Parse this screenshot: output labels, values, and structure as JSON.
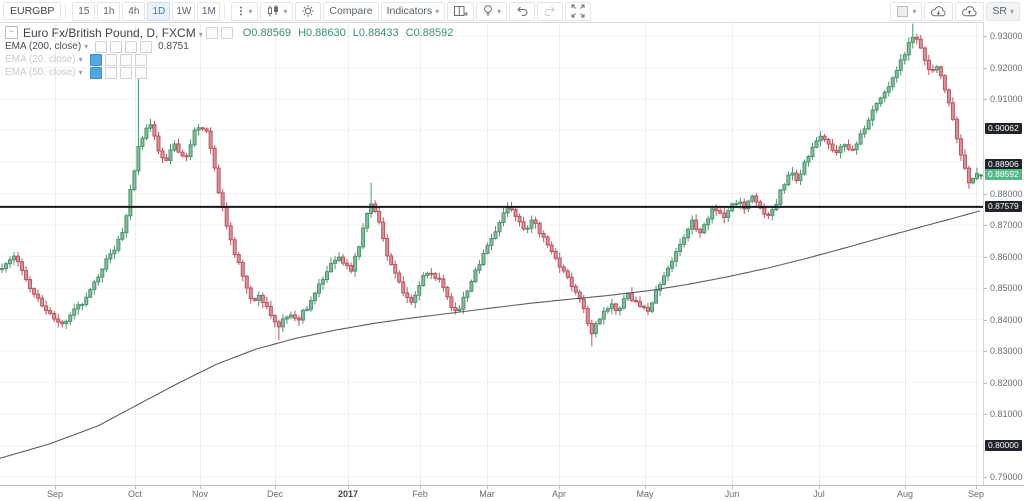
{
  "toolbar": {
    "symbol": "EURGBP",
    "intervals": [
      "15",
      "1h",
      "4h",
      "1D",
      "1W",
      "1M"
    ],
    "selected_interval": "1D",
    "compare_label": "Compare",
    "indicators_label": "Indicators",
    "layout_name": "SR"
  },
  "legend": {
    "title": "Euro Fx/British Pound, D, FXCM",
    "ohlc": [
      {
        "label": "O",
        "value": "0.88569"
      },
      {
        "label": "H",
        "value": "0.88630"
      },
      {
        "label": "L",
        "value": "0.88433"
      },
      {
        "label": "C",
        "value": "0.88592"
      }
    ],
    "indicators": [
      {
        "name": "EMA (200, close)",
        "value": "0.8751",
        "muted": false
      },
      {
        "name": "EMA (20, close)",
        "value": "",
        "muted": true
      },
      {
        "name": "EMA (50, close)",
        "value": "",
        "muted": true
      }
    ]
  },
  "chart_data": {
    "type": "candlestick",
    "symbol": "EURGBP",
    "title": "Euro Fx/British Pound, D, FXCM",
    "timeframe": "D",
    "exchange": "FXCM",
    "price_range": {
      "min": 0.7875,
      "max": 0.9345
    },
    "hline": 0.87579,
    "last_ohlc": {
      "o": 0.88569,
      "h": 0.8863,
      "l": 0.88433,
      "c": 0.88592
    },
    "y_axis": {
      "labels": [
        "0.93000",
        "0.92000",
        "0.91000",
        "0.88000",
        "0.87000",
        "0.86000",
        "0.85000",
        "0.84000",
        "0.83000",
        "0.82000",
        "0.81000",
        "0.79000"
      ],
      "badges": [
        {
          "value": "0.90062",
          "style": "dark"
        },
        {
          "value": "0.88906",
          "style": "dark"
        },
        {
          "value": "0.88592",
          "style": "green"
        },
        {
          "value": "0.87579",
          "style": "dark"
        },
        {
          "value": "0.80000",
          "style": "dark"
        }
      ]
    },
    "x_axis": {
      "months": [
        {
          "label": "Sep",
          "t": 0.056
        },
        {
          "label": "Oct",
          "t": 0.137
        },
        {
          "label": "Nov",
          "t": 0.203
        },
        {
          "label": "Dec",
          "t": 0.28
        },
        {
          "label": "2017",
          "t": 0.354,
          "bold": true
        },
        {
          "label": "Feb",
          "t": 0.427
        },
        {
          "label": "Mar",
          "t": 0.495
        },
        {
          "label": "Apr",
          "t": 0.569
        },
        {
          "label": "May",
          "t": 0.656
        },
        {
          "label": "Jun",
          "t": 0.745
        },
        {
          "label": "Jul",
          "t": 0.833
        },
        {
          "label": "Aug",
          "t": 0.921
        },
        {
          "label": "Sep",
          "t": 0.993
        }
      ]
    },
    "close_anchors": [
      [
        0.002,
        0.857
      ],
      [
        0.015,
        0.861
      ],
      [
        0.031,
        0.85
      ],
      [
        0.046,
        0.843
      ],
      [
        0.061,
        0.838
      ],
      [
        0.073,
        0.842
      ],
      [
        0.086,
        0.846
      ],
      [
        0.097,
        0.852
      ],
      [
        0.107,
        0.858
      ],
      [
        0.117,
        0.863
      ],
      [
        0.127,
        0.87
      ],
      [
        0.135,
        0.885
      ],
      [
        0.142,
        0.897
      ],
      [
        0.153,
        0.902
      ],
      [
        0.161,
        0.894
      ],
      [
        0.168,
        0.89
      ],
      [
        0.178,
        0.896
      ],
      [
        0.188,
        0.89
      ],
      [
        0.198,
        0.9
      ],
      [
        0.209,
        0.901
      ],
      [
        0.216,
        0.893
      ],
      [
        0.224,
        0.878
      ],
      [
        0.232,
        0.868
      ],
      [
        0.242,
        0.858
      ],
      [
        0.249,
        0.853
      ],
      [
        0.256,
        0.845
      ],
      [
        0.264,
        0.848
      ],
      [
        0.273,
        0.843
      ],
      [
        0.283,
        0.838
      ],
      [
        0.293,
        0.841
      ],
      [
        0.303,
        0.84
      ],
      [
        0.315,
        0.845
      ],
      [
        0.326,
        0.852
      ],
      [
        0.336,
        0.857
      ],
      [
        0.346,
        0.86
      ],
      [
        0.356,
        0.855
      ],
      [
        0.366,
        0.864
      ],
      [
        0.376,
        0.878
      ],
      [
        0.385,
        0.872
      ],
      [
        0.392,
        0.862
      ],
      [
        0.402,
        0.855
      ],
      [
        0.412,
        0.848
      ],
      [
        0.419,
        0.845
      ],
      [
        0.427,
        0.852
      ],
      [
        0.437,
        0.856
      ],
      [
        0.448,
        0.852
      ],
      [
        0.458,
        0.845
      ],
      [
        0.466,
        0.842
      ],
      [
        0.473,
        0.848
      ],
      [
        0.48,
        0.853
      ],
      [
        0.488,
        0.858
      ],
      [
        0.499,
        0.865
      ],
      [
        0.509,
        0.872
      ],
      [
        0.519,
        0.876
      ],
      [
        0.527,
        0.872
      ],
      [
        0.534,
        0.868
      ],
      [
        0.541,
        0.872
      ],
      [
        0.549,
        0.868
      ],
      [
        0.558,
        0.864
      ],
      [
        0.565,
        0.86
      ],
      [
        0.572,
        0.856
      ],
      [
        0.58,
        0.852
      ],
      [
        0.588,
        0.848
      ],
      [
        0.595,
        0.842
      ],
      [
        0.602,
        0.836
      ],
      [
        0.61,
        0.84
      ],
      [
        0.621,
        0.845
      ],
      [
        0.629,
        0.843
      ],
      [
        0.639,
        0.848
      ],
      [
        0.649,
        0.845
      ],
      [
        0.659,
        0.843
      ],
      [
        0.666,
        0.848
      ],
      [
        0.673,
        0.853
      ],
      [
        0.682,
        0.858
      ],
      [
        0.69,
        0.862
      ],
      [
        0.697,
        0.867
      ],
      [
        0.704,
        0.871
      ],
      [
        0.712,
        0.868
      ],
      [
        0.72,
        0.872
      ],
      [
        0.727,
        0.876
      ],
      [
        0.735,
        0.872
      ],
      [
        0.743,
        0.876
      ],
      [
        0.751,
        0.878
      ],
      [
        0.758,
        0.875
      ],
      [
        0.765,
        0.88
      ],
      [
        0.773,
        0.876
      ],
      [
        0.781,
        0.872
      ],
      [
        0.788,
        0.876
      ],
      [
        0.796,
        0.882
      ],
      [
        0.804,
        0.887
      ],
      [
        0.812,
        0.884
      ],
      [
        0.819,
        0.89
      ],
      [
        0.826,
        0.895
      ],
      [
        0.834,
        0.899
      ],
      [
        0.842,
        0.896
      ],
      [
        0.849,
        0.892
      ],
      [
        0.857,
        0.896
      ],
      [
        0.865,
        0.893
      ],
      [
        0.873,
        0.897
      ],
      [
        0.88,
        0.901
      ],
      [
        0.887,
        0.906
      ],
      [
        0.895,
        0.91
      ],
      [
        0.903,
        0.914
      ],
      [
        0.91,
        0.918
      ],
      [
        0.918,
        0.923
      ],
      [
        0.924,
        0.927
      ],
      [
        0.93,
        0.93
      ],
      [
        0.936,
        0.926
      ],
      [
        0.942,
        0.922
      ],
      [
        0.948,
        0.918
      ],
      [
        0.954,
        0.921
      ],
      [
        0.96,
        0.915
      ],
      [
        0.966,
        0.908
      ],
      [
        0.972,
        0.9
      ],
      [
        0.979,
        0.891
      ],
      [
        0.985,
        0.883
      ],
      [
        0.991,
        0.886
      ],
      [
        0.997,
        0.88592
      ]
    ],
    "spikes": [
      {
        "t": 0.142,
        "high": 0.92
      },
      {
        "t": 0.283,
        "low": 0.8335
      },
      {
        "t": 0.376,
        "high": 0.8835
      },
      {
        "t": 0.602,
        "low": 0.8315
      },
      {
        "t": 0.93,
        "high": 0.934
      }
    ],
    "ema200": {
      "period": 200,
      "value": 0.8751,
      "anchors": [
        [
          0.0,
          0.796
        ],
        [
          0.05,
          0.8005
        ],
        [
          0.1,
          0.8063
        ],
        [
          0.14,
          0.813
        ],
        [
          0.18,
          0.8196
        ],
        [
          0.22,
          0.8258
        ],
        [
          0.26,
          0.8306
        ],
        [
          0.3,
          0.834
        ],
        [
          0.34,
          0.8366
        ],
        [
          0.38,
          0.8388
        ],
        [
          0.42,
          0.8406
        ],
        [
          0.46,
          0.8421
        ],
        [
          0.5,
          0.8437
        ],
        [
          0.54,
          0.8452
        ],
        [
          0.58,
          0.8465
        ],
        [
          0.62,
          0.8477
        ],
        [
          0.66,
          0.8492
        ],
        [
          0.7,
          0.8512
        ],
        [
          0.74,
          0.8536
        ],
        [
          0.78,
          0.8563
        ],
        [
          0.82,
          0.8594
        ],
        [
          0.86,
          0.8628
        ],
        [
          0.9,
          0.8663
        ],
        [
          0.94,
          0.8697
        ],
        [
          0.97,
          0.8722
        ],
        [
          1.0,
          0.8748
        ]
      ]
    },
    "colors": {
      "up_border": "#4f9470",
      "up_fill": "#86bb9d",
      "down_border": "#bb545e",
      "down_fill": "#d8949a",
      "ema_line": "#5a5d66",
      "hline": "#15171c",
      "badge_dark": "#20232b",
      "badge_green": "#53b987",
      "accent": "#2a7cc7",
      "legend_ohlc": "#3d8f74",
      "grid_h": "#f1f3f6",
      "grid_v": "#ebedf1"
    }
  }
}
